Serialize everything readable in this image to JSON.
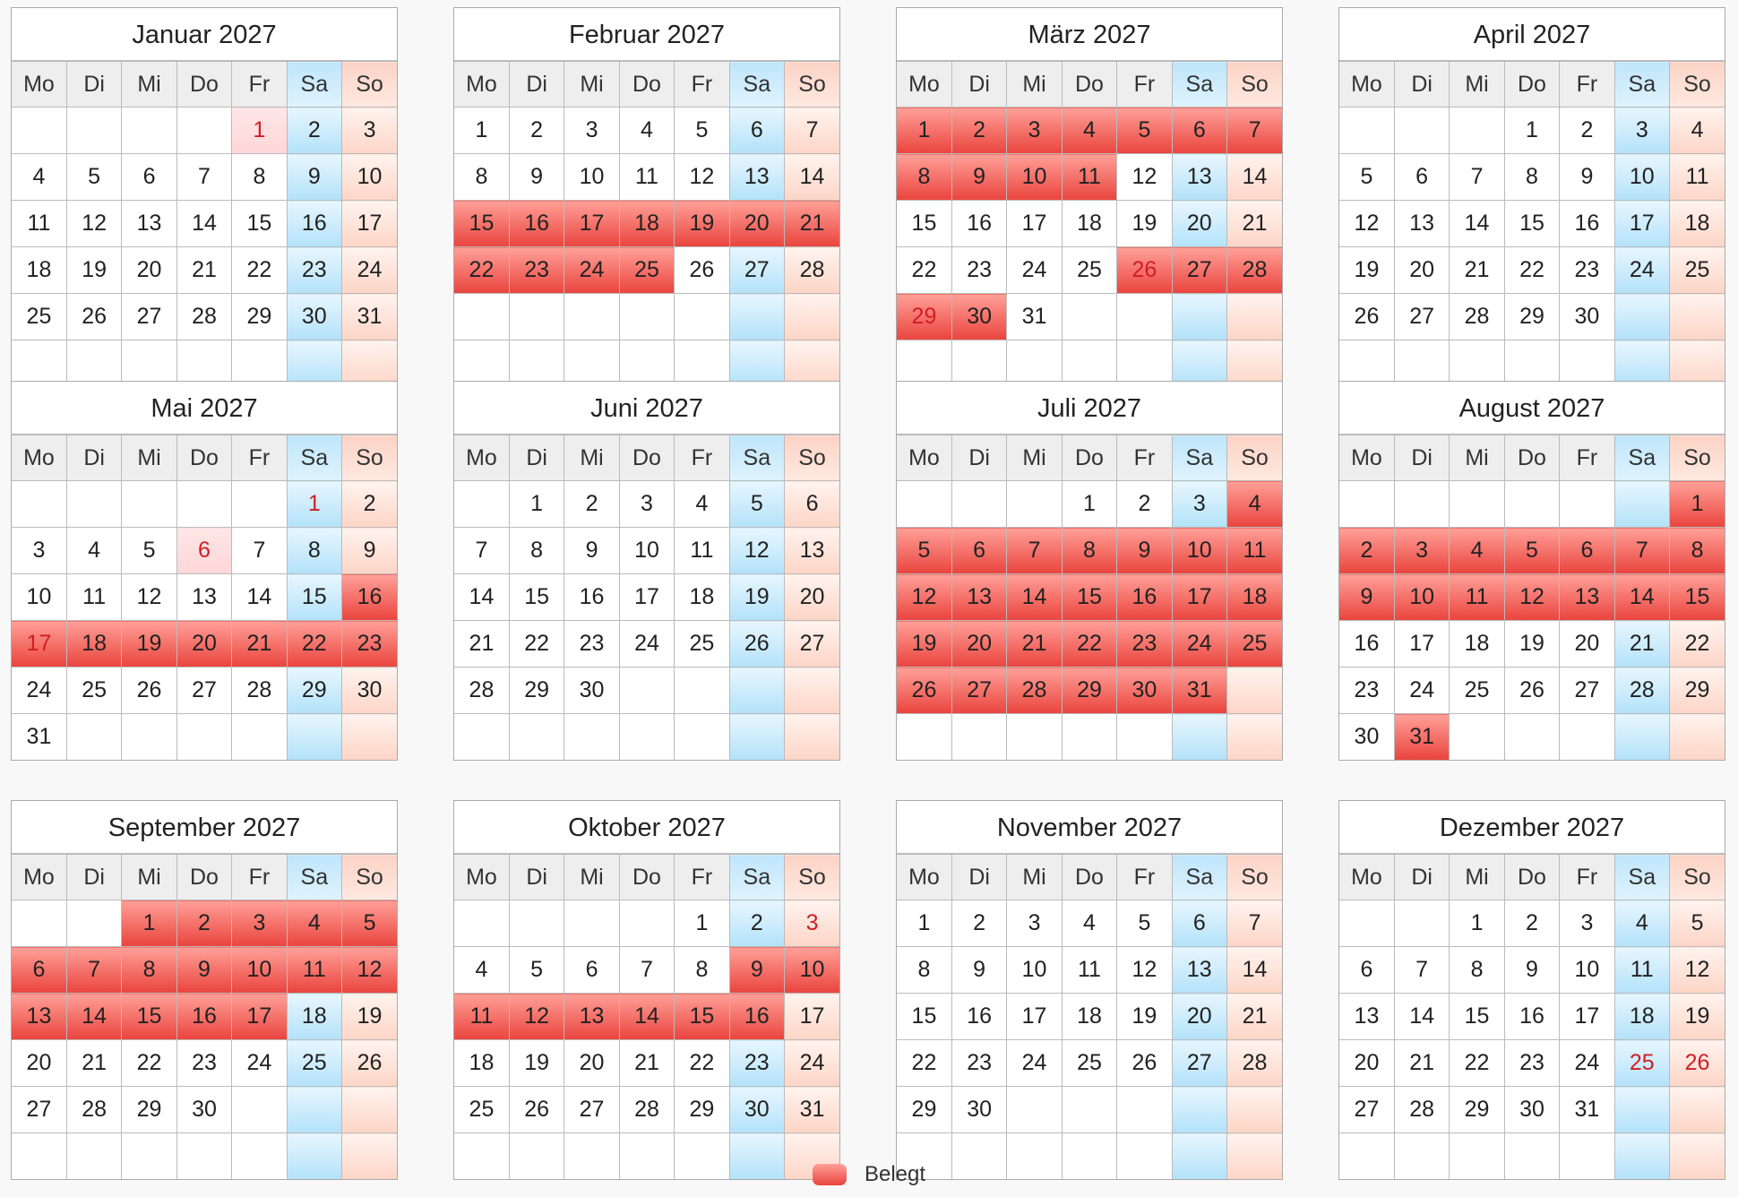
{
  "weekdays": [
    "Mo",
    "Di",
    "Mi",
    "Do",
    "Fr",
    "Sa",
    "So"
  ],
  "months": [
    {
      "title": "Januar 2027",
      "start_offset": 4,
      "days": 31,
      "booked": [],
      "partial": [
        1
      ],
      "holidays": [
        1
      ]
    },
    {
      "title": "Februar 2027",
      "start_offset": 0,
      "days": 28,
      "booked": [
        15,
        16,
        17,
        18,
        19,
        20,
        21,
        22,
        23,
        24,
        25
      ],
      "partial": [],
      "holidays": []
    },
    {
      "title": "März 2027",
      "start_offset": 0,
      "days": 31,
      "booked": [
        1,
        2,
        3,
        4,
        5,
        6,
        7,
        8,
        9,
        10,
        11,
        26,
        27,
        28,
        29,
        30
      ],
      "partial": [],
      "holidays": [
        26,
        29
      ]
    },
    {
      "title": "April 2027",
      "start_offset": 3,
      "days": 30,
      "booked": [],
      "partial": [],
      "holidays": []
    },
    {
      "title": "Mai 2027",
      "start_offset": 5,
      "days": 31,
      "booked": [
        16,
        17,
        18,
        19,
        20,
        21,
        22,
        23
      ],
      "partial": [
        6
      ],
      "holidays": [
        1,
        6,
        17
      ]
    },
    {
      "title": "Juni 2027",
      "start_offset": 1,
      "days": 30,
      "booked": [],
      "partial": [],
      "holidays": []
    },
    {
      "title": "Juli 2027",
      "start_offset": 3,
      "days": 31,
      "booked": [
        4,
        5,
        6,
        7,
        8,
        9,
        10,
        11,
        12,
        13,
        14,
        15,
        16,
        17,
        18,
        19,
        20,
        21,
        22,
        23,
        24,
        25,
        26,
        27,
        28,
        29,
        30,
        31
      ],
      "partial": [],
      "holidays": []
    },
    {
      "title": "August 2027",
      "start_offset": 6,
      "days": 31,
      "booked": [
        1,
        2,
        3,
        4,
        5,
        6,
        7,
        8,
        9,
        10,
        11,
        12,
        13,
        14,
        15,
        31
      ],
      "partial": [],
      "holidays": []
    },
    {
      "title": "September 2027",
      "start_offset": 2,
      "days": 30,
      "booked": [
        1,
        2,
        3,
        4,
        5,
        6,
        7,
        8,
        9,
        10,
        11,
        12,
        13,
        14,
        15,
        16,
        17
      ],
      "partial": [],
      "holidays": []
    },
    {
      "title": "Oktober 2027",
      "start_offset": 4,
      "days": 31,
      "booked": [
        9,
        10,
        11,
        12,
        13,
        14,
        15,
        16
      ],
      "partial": [],
      "holidays": [
        3
      ]
    },
    {
      "title": "November 2027",
      "start_offset": 0,
      "days": 30,
      "booked": [],
      "partial": [],
      "holidays": []
    },
    {
      "title": "Dezember 2027",
      "start_offset": 2,
      "days": 31,
      "booked": [],
      "partial": [],
      "holidays": [
        25,
        26
      ]
    }
  ],
  "legend": {
    "label": "Belegt"
  },
  "colors": {
    "booked": "#e9443d",
    "saturday": "#b3e2fa",
    "sunday": "#fdd5c6",
    "holiday_text": "#d01e25"
  }
}
